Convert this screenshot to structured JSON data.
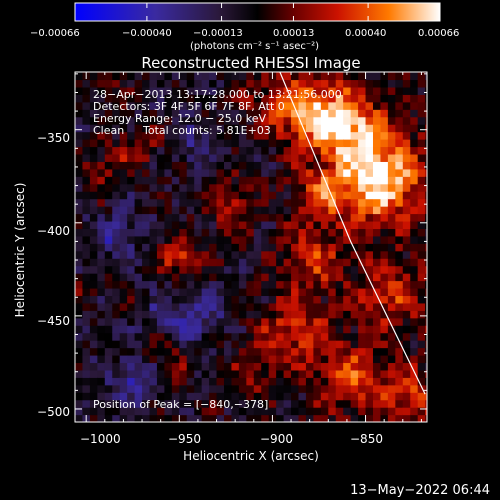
{
  "chart_data": {
    "type": "heatmap",
    "title": "Reconstructed RHESSI Image",
    "xlabel": "Heliocentric X (arcsec)",
    "ylabel": "Heliocentric Y (arcsec)",
    "xlim": [
      -1006,
      -817
    ],
    "ylim": [
      -507,
      -319
    ],
    "xticks": [
      -1000,
      -950,
      -900,
      -850
    ],
    "yticks": [
      -500,
      -450,
      -400,
      -350
    ],
    "xtick_labels": [
      "−1000",
      "−950",
      "−900",
      "−850"
    ],
    "ytick_labels": [
      "−500",
      "−450",
      "−400",
      "−350"
    ],
    "colorbar": {
      "range": [
        -0.00066,
        0.00066
      ],
      "ticks": [
        -0.00066,
        -0.0004,
        -0.00013,
        0.00013,
        0.0004,
        0.00066
      ],
      "tick_labels": [
        "−0.00066",
        "−0.00040",
        "−0.00013",
        "0.00013",
        "0.00040",
        "0.00066"
      ],
      "unit_label": "(photons cm⁻² s⁻¹ asec⁻²)"
    },
    "info_lines": [
      "28−Apr−2013 13:17:28.000 to 13:21:56.000",
      "Detectors: 3F 4F 5F 6F 7F 8F, Att 0",
      "Energy Range: 12.0 − 25.0 keV",
      "Clean",
      "Total counts: 5.81E+03"
    ],
    "peak_label": "Position of Peak = [−840,−378]",
    "peak": [
      -840,
      -378
    ],
    "limb": [
      [
        -896,
        -319
      ],
      [
        -858,
        -410
      ],
      [
        -818,
        -492
      ]
    ],
    "sources": [
      {
        "x": -845,
        "y": -378,
        "peak": 0.00066,
        "sigma": 16
      },
      {
        "x": -882,
        "y": -342,
        "peak": 0.00055,
        "sigma": 13
      },
      {
        "x": -860,
        "y": -350,
        "peak": 0.0005,
        "sigma": 12
      },
      {
        "x": -875,
        "y": -385,
        "peak": 0.00035,
        "sigma": 10
      },
      {
        "x": -925,
        "y": -392,
        "peak": 0.0003,
        "sigma": 9
      },
      {
        "x": -952,
        "y": -420,
        "peak": 0.00036,
        "sigma": 8
      },
      {
        "x": -880,
        "y": -420,
        "peak": 0.0003,
        "sigma": 12
      },
      {
        "x": -890,
        "y": -460,
        "peak": 0.00034,
        "sigma": 14
      },
      {
        "x": -840,
        "y": -440,
        "peak": 0.00032,
        "sigma": 12
      },
      {
        "x": -860,
        "y": -485,
        "peak": 0.00035,
        "sigma": 12
      },
      {
        "x": -830,
        "y": -495,
        "peak": 0.00033,
        "sigma": 10
      },
      {
        "x": -975,
        "y": -362,
        "peak": 0.00024,
        "sigma": 9
      },
      {
        "x": -995,
        "y": -375,
        "peak": 0.00022,
        "sigma": 8
      },
      {
        "x": -1003,
        "y": -440,
        "peak": 0.00018,
        "sigma": 7
      },
      {
        "x": -992,
        "y": -328,
        "peak": 0.00018,
        "sigma": 7
      },
      {
        "x": -905,
        "y": -335,
        "peak": 0.0002,
        "sigma": 8
      },
      {
        "x": -960,
        "y": -478,
        "peak": 0.0002,
        "sigma": 8
      },
      {
        "x": -912,
        "y": -482,
        "peak": 0.00022,
        "sigma": 8
      },
      {
        "x": -940,
        "y": -452,
        "peak": -0.00025,
        "sigma": 9
      },
      {
        "x": -985,
        "y": -408,
        "peak": -0.00028,
        "sigma": 7
      },
      {
        "x": -975,
        "y": -485,
        "peak": -0.0003,
        "sigma": 8
      },
      {
        "x": -945,
        "y": -360,
        "peak": -0.00018,
        "sigma": 8
      },
      {
        "x": -958,
        "y": -450,
        "peak": -0.0002,
        "sigma": 7
      }
    ]
  }
}
